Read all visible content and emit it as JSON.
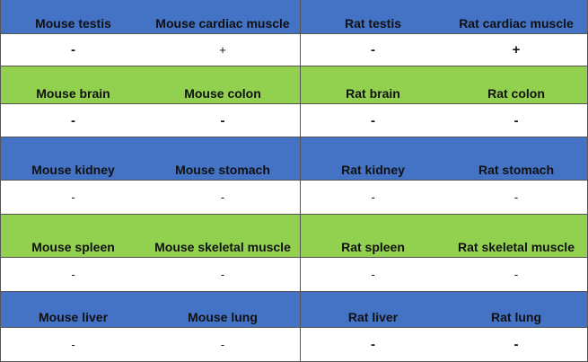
{
  "colors": {
    "blue": "#4472c4",
    "green": "#92d050",
    "white": "#ffffff"
  },
  "table": {
    "groups": [
      {
        "header_color": "blue",
        "headers": [
          "Mouse testis",
          "Mouse cardiac muscle",
          "Rat testis",
          "Rat cardiac muscle"
        ],
        "values": [
          "-",
          "+",
          "-",
          "+"
        ]
      },
      {
        "header_color": "green",
        "headers": [
          "Mouse brain",
          "Mouse colon",
          "Rat brain",
          "Rat colon"
        ],
        "values": [
          "-",
          "-",
          "-",
          "-"
        ]
      },
      {
        "header_color": "blue",
        "headers": [
          "Mouse kidney",
          "Mouse stomach",
          "Rat kidney",
          "Rat stomach"
        ],
        "values": [
          "-",
          "-",
          "-",
          "-"
        ]
      },
      {
        "header_color": "green",
        "headers": [
          "Mouse spleen",
          "Mouse skeletal muscle",
          "Rat spleen",
          "Rat skeletal muscle"
        ],
        "values": [
          "-",
          "-",
          "-",
          "-"
        ]
      },
      {
        "header_color": "blue",
        "headers": [
          "Mouse liver",
          "Mouse lung",
          "Rat liver",
          "Rat lung"
        ],
        "values": [
          "-",
          "-",
          "-",
          "-"
        ]
      }
    ]
  }
}
